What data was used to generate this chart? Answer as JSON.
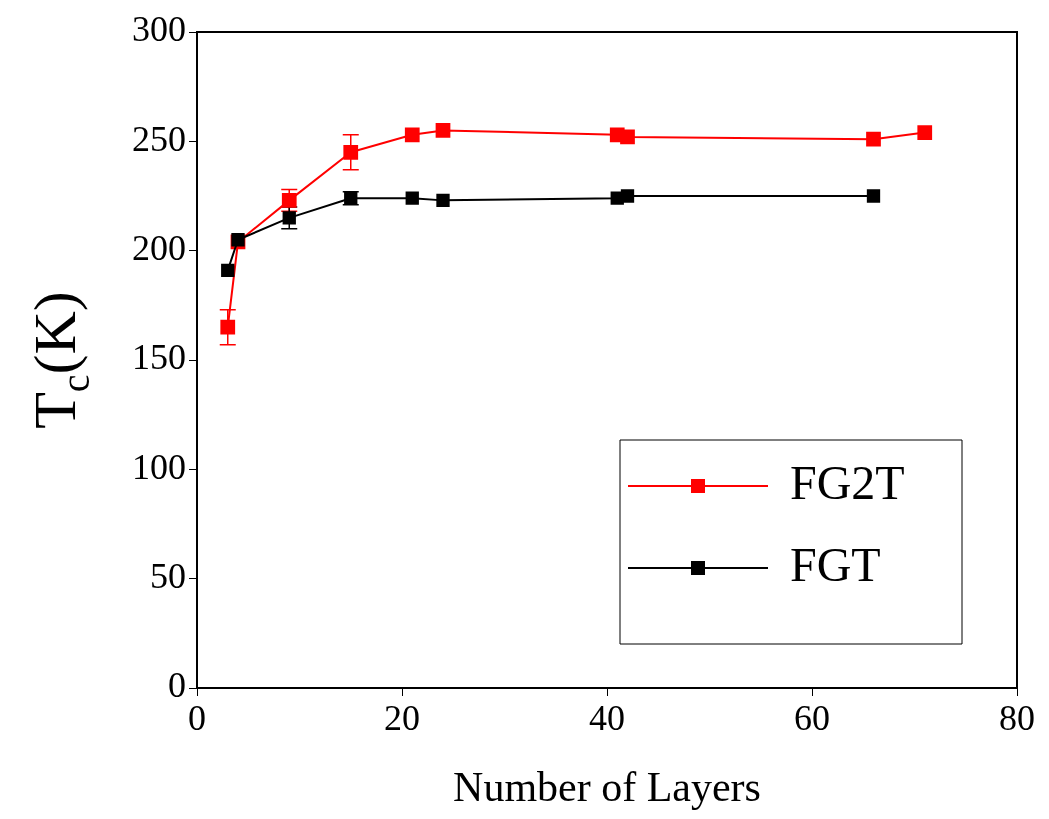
{
  "chart_data": {
    "type": "line",
    "xlabel": "Number of Layers",
    "ylabel": "T$_{c}$(K)",
    "xlim": [
      0,
      80
    ],
    "xticks": [
      0,
      20,
      40,
      60,
      80
    ],
    "ylim": [
      0,
      300
    ],
    "yticks": [
      0,
      50,
      100,
      150,
      200,
      250,
      300
    ],
    "grid": false,
    "legend": "bottom right",
    "marker": "square",
    "line_style": "solid",
    "series": [
      {
        "name": "FG2T",
        "color": "#ff0000",
        "x": [
          3,
          4,
          9,
          15,
          21,
          24,
          41,
          42,
          66,
          71
        ],
        "values": [
          165,
          204,
          223,
          245,
          253,
          255,
          253,
          252,
          251,
          254
        ],
        "errors": [
          8,
          null,
          5,
          8,
          null,
          null,
          null,
          null,
          null,
          null
        ]
      },
      {
        "name": "FGT",
        "color": "#000000",
        "x": [
          3,
          4,
          9,
          15,
          21,
          24,
          41,
          42,
          66
        ],
        "values": [
          191,
          205,
          215,
          224,
          224,
          223,
          224,
          225,
          225
        ],
        "errors": [
          null,
          null,
          5,
          3,
          null,
          null,
          null,
          null,
          null
        ]
      }
    ]
  }
}
